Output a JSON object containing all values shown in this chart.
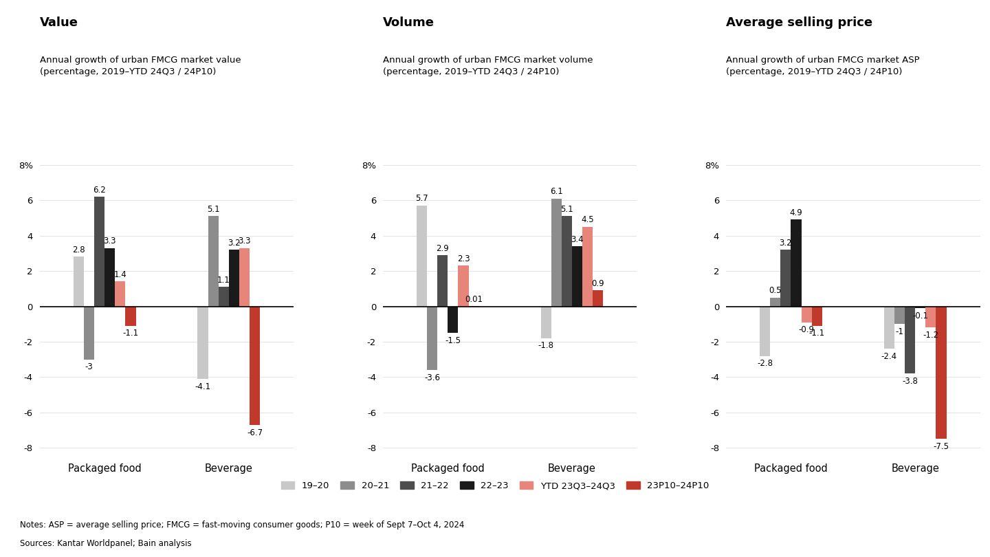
{
  "charts": [
    {
      "title": "Value",
      "subtitle": "Annual growth of urban FMCG market value\n(percentage, 2019–YTD 24Q3 / 24P10)",
      "packaged_food": [
        2.8,
        -3.0,
        6.2,
        3.3,
        1.4,
        -1.1
      ],
      "beverage": [
        -4.1,
        5.1,
        1.1,
        3.2,
        3.3,
        -6.7
      ]
    },
    {
      "title": "Volume",
      "subtitle": "Annual growth of urban FMCG market volume\n(percentage, 2019–YTD 24Q3 / 24P10)",
      "packaged_food": [
        5.7,
        -3.6,
        2.9,
        -1.5,
        2.3,
        0.01
      ],
      "beverage": [
        -1.8,
        6.1,
        5.1,
        3.4,
        4.5,
        0.9
      ]
    },
    {
      "title": "Average selling price",
      "subtitle": "Annual growth of urban FMCG market ASP\n(percentage, 2019–YTD 24Q3 / 24P10)",
      "packaged_food": [
        -2.8,
        0.5,
        3.2,
        4.9,
        -0.9,
        -1.1
      ],
      "beverage": [
        -2.4,
        -1.0,
        -3.8,
        -0.1,
        -1.2,
        -7.5
      ]
    }
  ],
  "series_labels": [
    "19–20",
    "20–21",
    "21–22",
    "22–23",
    "YTD 23Q3–24Q3",
    "23P10–24P10"
  ],
  "colors": [
    "#c8c8c8",
    "#8c8c8c",
    "#4d4d4d",
    "#1a1a1a",
    "#e8857a",
    "#c0392b"
  ],
  "ylim": [
    -8.5,
    8.5
  ],
  "yticks": [
    -8,
    -6,
    -4,
    -2,
    0,
    2,
    4,
    6,
    8
  ],
  "background_color": "#ffffff",
  "notes": "Notes: ASP = average selling price; FMCG = fast-moving consumer goods; P10 = week of Sept 7–Oct 4, 2024",
  "sources": "Sources: Kantar Worldpanel; Bain analysis"
}
